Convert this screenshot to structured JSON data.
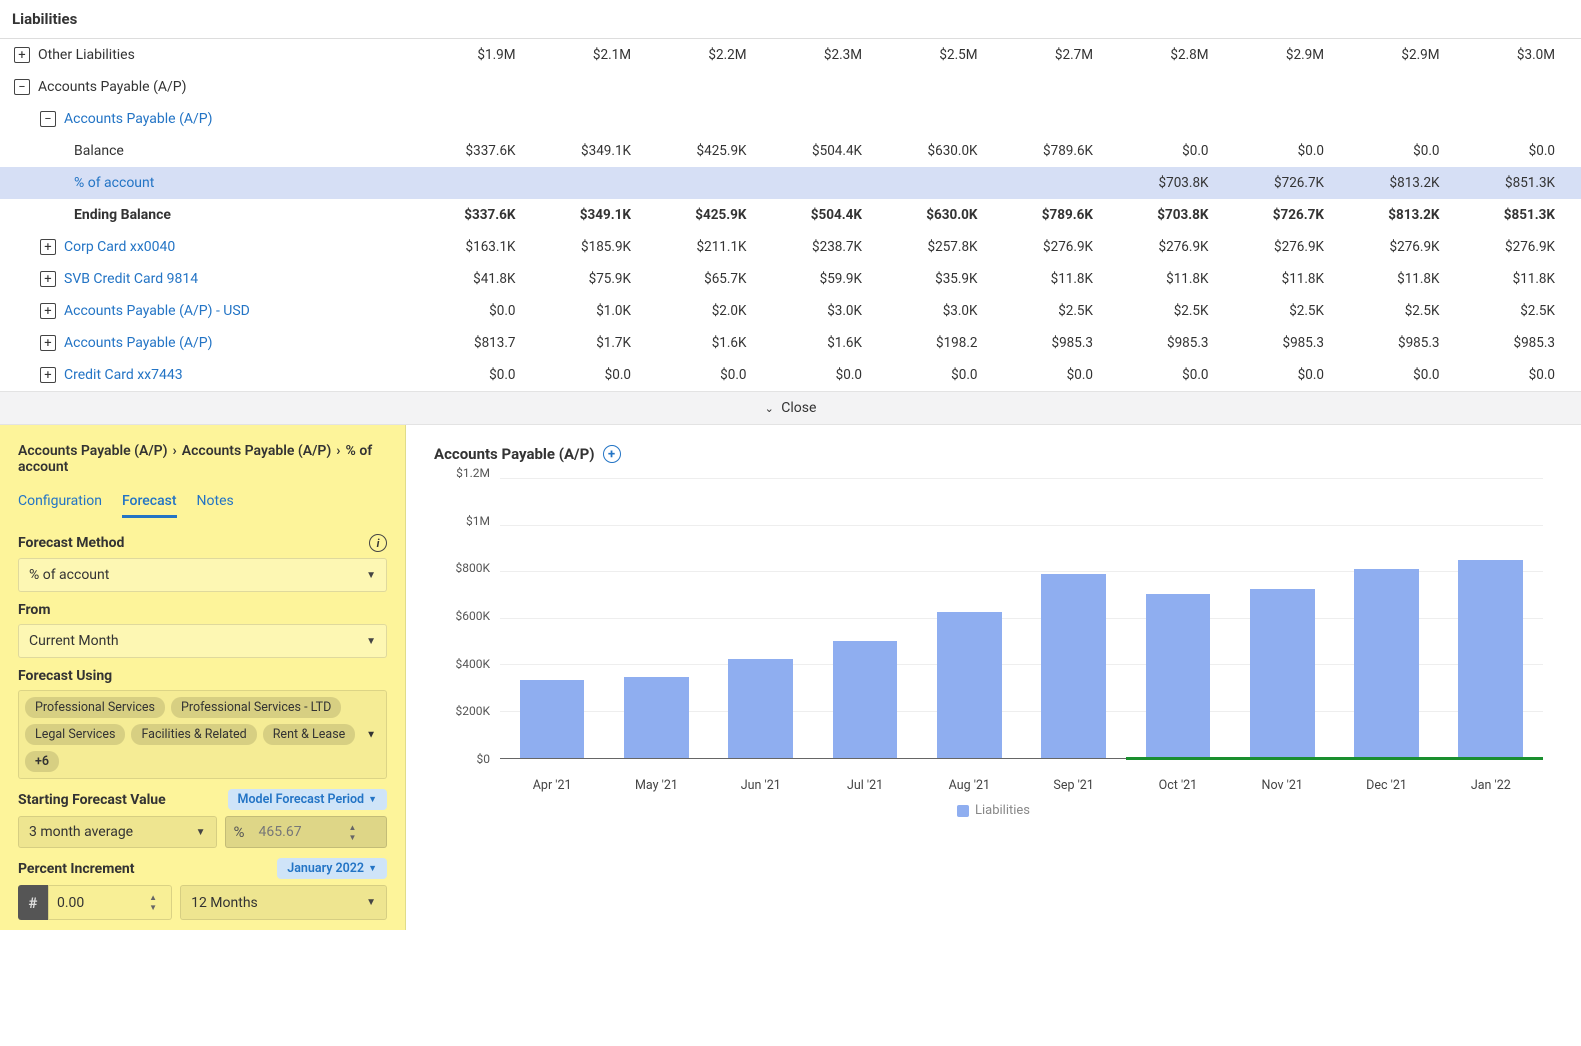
{
  "section_title": "Liabilities",
  "columns_count": 10,
  "rows": [
    {
      "id": "other-liab",
      "indent": 0,
      "box": "plus",
      "label": "Other Liabilities",
      "link": false,
      "bold": false,
      "values": [
        "$1.9M",
        "$2.1M",
        "$2.2M",
        "$2.3M",
        "$2.5M",
        "$2.7M",
        "$2.8M",
        "$2.9M",
        "$2.9M",
        "$3.0M"
      ]
    },
    {
      "id": "ap",
      "indent": 0,
      "box": "minus",
      "label": "Accounts Payable (A/P)",
      "link": false,
      "bold": false,
      "values": [
        "",
        "",
        "",
        "",
        "",
        "",
        "",
        "",
        "",
        ""
      ]
    },
    {
      "id": "ap-sub",
      "indent": 1,
      "box": "minus",
      "label": "Accounts Payable (A/P)",
      "link": true,
      "bold": false,
      "values": [
        "",
        "",
        "",
        "",
        "",
        "",
        "",
        "",
        "",
        ""
      ]
    },
    {
      "id": "balance",
      "indent": 2,
      "box": "none",
      "label": "Balance",
      "link": false,
      "bold": false,
      "values": [
        "$337.6K",
        "$349.1K",
        "$425.9K",
        "$504.4K",
        "$630.0K",
        "$789.6K",
        "$0.0",
        "$0.0",
        "$0.0",
        "$0.0"
      ]
    },
    {
      "id": "pct-account",
      "indent": 2,
      "box": "none",
      "label": "% of account",
      "link": true,
      "bold": false,
      "highlight": true,
      "values": [
        "",
        "",
        "",
        "",
        "",
        "",
        "$703.8K",
        "$726.7K",
        "$813.2K",
        "$851.3K"
      ]
    },
    {
      "id": "ending-balance",
      "indent": 2,
      "box": "none",
      "label": "Ending Balance",
      "link": false,
      "bold": true,
      "values": [
        "$337.6K",
        "$349.1K",
        "$425.9K",
        "$504.4K",
        "$630.0K",
        "$789.6K",
        "$703.8K",
        "$726.7K",
        "$813.2K",
        "$851.3K"
      ]
    },
    {
      "id": "corp-card",
      "indent": 1,
      "box": "plus",
      "label": "Corp Card xx0040",
      "link": true,
      "bold": false,
      "values": [
        "$163.1K",
        "$185.9K",
        "$211.1K",
        "$238.7K",
        "$257.8K",
        "$276.9K",
        "$276.9K",
        "$276.9K",
        "$276.9K",
        "$276.9K"
      ]
    },
    {
      "id": "svb",
      "indent": 1,
      "box": "plus",
      "label": "SVB Credit Card 9814",
      "link": true,
      "bold": false,
      "values": [
        "$41.8K",
        "$75.9K",
        "$65.7K",
        "$59.9K",
        "$35.9K",
        "$11.8K",
        "$11.8K",
        "$11.8K",
        "$11.8K",
        "$11.8K"
      ]
    },
    {
      "id": "ap-usd",
      "indent": 1,
      "box": "plus",
      "label": "Accounts Payable (A/P) - USD",
      "link": true,
      "bold": false,
      "values": [
        "$0.0",
        "$1.0K",
        "$2.0K",
        "$3.0K",
        "$3.0K",
        "$2.5K",
        "$2.5K",
        "$2.5K",
        "$2.5K",
        "$2.5K"
      ]
    },
    {
      "id": "ap2",
      "indent": 1,
      "box": "plus",
      "label": "Accounts Payable (A/P)",
      "link": true,
      "bold": false,
      "values": [
        "$813.7",
        "$1.7K",
        "$1.6K",
        "$1.6K",
        "$198.2",
        "$985.3",
        "$985.3",
        "$985.3",
        "$985.3",
        "$985.3"
      ]
    },
    {
      "id": "cc7443",
      "indent": 1,
      "box": "plus",
      "label": "Credit Card xx7443",
      "link": true,
      "bold": false,
      "values": [
        "$0.0",
        "$0.0",
        "$0.0",
        "$0.0",
        "$0.0",
        "$0.0",
        "$0.0",
        "$0.0",
        "$0.0",
        "$0.0"
      ]
    }
  ],
  "close_label": "Close",
  "breadcrumb": [
    "Accounts Payable (A/P)",
    "Accounts Payable (A/P)",
    "% of account"
  ],
  "tabs": [
    {
      "id": "config",
      "label": "Configuration",
      "active": false
    },
    {
      "id": "forecast",
      "label": "Forecast",
      "active": true
    },
    {
      "id": "notes",
      "label": "Notes",
      "active": false
    }
  ],
  "forecast_method": {
    "label": "Forecast Method",
    "value": "% of account"
  },
  "from": {
    "label": "From",
    "value": "Current Month"
  },
  "forecast_using": {
    "label": "Forecast Using",
    "tags": [
      "Professional Services",
      "Professional Services - LTD",
      "Legal Services",
      "Facilities & Related",
      "Rent & Lease"
    ],
    "more": "+6"
  },
  "starting_value": {
    "label": "Starting Forecast Value",
    "pill": "Model Forecast Period",
    "dropdown": "3 month average",
    "pct_value": "465.67"
  },
  "percent_increment": {
    "label": "Percent Increment",
    "pill": "January 2022",
    "num": "0.00",
    "duration": "12 Months"
  },
  "chart": {
    "title": "Accounts Payable (A/P)",
    "y_max": 1200000,
    "y_ticks": [
      {
        "label": "$1.2M",
        "value": 1200000
      },
      {
        "label": "$1M",
        "value": 1000000
      },
      {
        "label": "$800K",
        "value": 800000
      },
      {
        "label": "$600K",
        "value": 600000
      },
      {
        "label": "$400K",
        "value": 400000
      },
      {
        "label": "$200K",
        "value": 200000
      },
      {
        "label": "$0",
        "value": 0
      }
    ],
    "bars": [
      {
        "label": "Apr '21",
        "value": 337600
      },
      {
        "label": "May '21",
        "value": 349100
      },
      {
        "label": "Jun '21",
        "value": 425900
      },
      {
        "label": "Jul '21",
        "value": 504400
      },
      {
        "label": "Aug '21",
        "value": 630000
      },
      {
        "label": "Sep '21",
        "value": 789600
      },
      {
        "label": "Oct '21",
        "value": 703800
      },
      {
        "label": "Nov '21",
        "value": 726700
      },
      {
        "label": "Dec '21",
        "value": 813200
      },
      {
        "label": "Jan '22",
        "value": 851300
      }
    ],
    "forecast_start_index": 6,
    "bar_color": "#8faef0",
    "grid_color": "#eeeeee",
    "forecast_line_color": "#1a8f2e",
    "legend": "Liabilities"
  }
}
